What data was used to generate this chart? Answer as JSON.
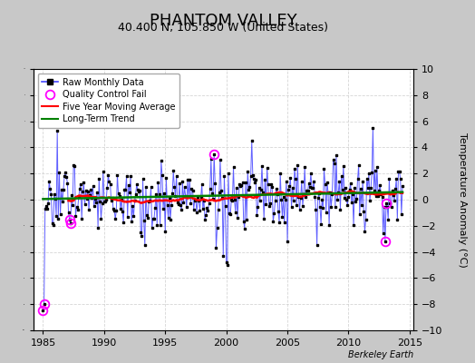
{
  "title": "PHANTOM VALLEY",
  "subtitle": "40.400 N, 105.850 W (United States)",
  "ylabel": "Temperature Anomaly (°C)",
  "watermark": "Berkeley Earth",
  "xlim": [
    1984.2,
    2015.3
  ],
  "ylim": [
    -10,
    10
  ],
  "yticks": [
    -10,
    -8,
    -6,
    -4,
    -2,
    0,
    2,
    4,
    6,
    8,
    10
  ],
  "xticks": [
    1985,
    1990,
    1995,
    2000,
    2005,
    2010,
    2015
  ],
  "bg_color": "#c8c8c8",
  "plot_bg_color": "#ffffff",
  "grid_color": "#cccccc",
  "raw_line_color": "#4444ff",
  "raw_marker_color": "black",
  "qc_color": "magenta",
  "moving_avg_color": "red",
  "trend_color": "green",
  "title_fontsize": 13,
  "subtitle_fontsize": 9,
  "ylabel_fontsize": 8,
  "tick_fontsize": 8,
  "trend_slope": 0.018,
  "trend_intercept": 0.05
}
